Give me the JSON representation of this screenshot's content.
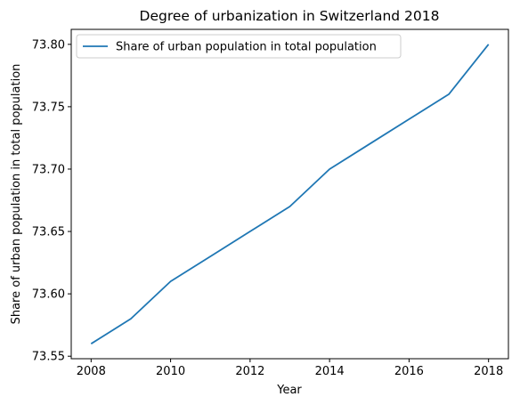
{
  "chart_data": {
    "type": "line",
    "title": "Degree of urbanization in Switzerland 2018",
    "xlabel": "Year",
    "ylabel": "Share of urban population in total population",
    "x": [
      2008,
      2009,
      2010,
      2011,
      2012,
      2013,
      2014,
      2015,
      2016,
      2017,
      2018
    ],
    "series": [
      {
        "name": "Share of urban population in total population",
        "values": [
          73.56,
          73.58,
          73.61,
          73.63,
          73.65,
          73.67,
          73.7,
          73.72,
          73.74,
          73.76,
          73.8
        ],
        "color": "#1f77b4"
      }
    ],
    "xlim": [
      2007.5,
      2018.5
    ],
    "ylim": [
      73.548,
      73.812
    ],
    "xticks": [
      "2008",
      "2010",
      "2012",
      "2014",
      "2016",
      "2018"
    ],
    "yticks": [
      "73.55",
      "73.60",
      "73.65",
      "73.70",
      "73.75",
      "73.80"
    ],
    "grid": false,
    "legend_position": "top-left"
  }
}
